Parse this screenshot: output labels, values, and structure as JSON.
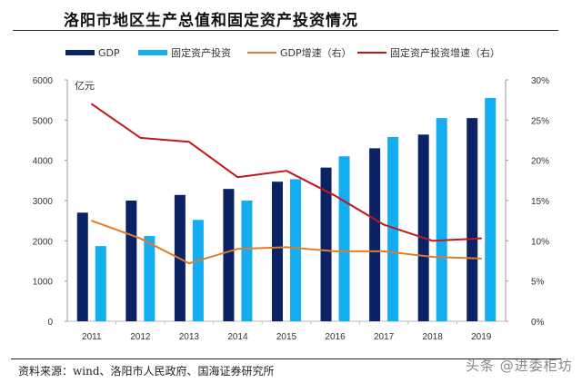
{
  "title": "洛阳市地区生产总值和固定资产投资情况",
  "source": "资料来源：wind、洛阳市人民政府、国海证券研究所",
  "watermark": "头条 @进委柜坊",
  "chart_data": {
    "type": "bar",
    "title": "洛阳市地区生产总值和固定资产投资情况",
    "categories": [
      "2011",
      "2012",
      "2013",
      "2014",
      "2015",
      "2016",
      "2017",
      "2018",
      "2019"
    ],
    "left_axis": {
      "unit_label": "亿元",
      "ylim": [
        0,
        6000
      ],
      "ticks": [
        "0",
        "1000",
        "2000",
        "3000",
        "4000",
        "5000",
        "6000"
      ]
    },
    "right_axis": {
      "ylim": [
        0,
        30
      ],
      "ticks": [
        "0%",
        "5%",
        "10%",
        "15%",
        "20%",
        "25%",
        "30%"
      ]
    },
    "series": [
      {
        "name": "GDP",
        "kind": "bar",
        "axis": "left",
        "color": "#0b2265",
        "values": [
          2700,
          3000,
          3140,
          3290,
          3470,
          3820,
          4300,
          4640,
          5050
        ]
      },
      {
        "name": "固定资产投资",
        "kind": "bar",
        "axis": "left",
        "color": "#14aef0",
        "values": [
          1870,
          2120,
          2520,
          3000,
          3530,
          4100,
          4580,
          5050,
          5550
        ]
      },
      {
        "name": "GDP增速（右）",
        "kind": "line",
        "axis": "right",
        "color": "#e07b2a",
        "values": [
          12.5,
          10.3,
          7.2,
          9.0,
          9.2,
          8.7,
          8.7,
          8.0,
          7.8
        ]
      },
      {
        "name": "固定资产投资增速（右）",
        "kind": "line",
        "axis": "right",
        "color": "#c0171f",
        "values": [
          27.0,
          22.8,
          22.3,
          17.9,
          18.7,
          15.6,
          12.0,
          10.0,
          10.3
        ]
      }
    ],
    "legend_position": "top",
    "grid": false
  }
}
